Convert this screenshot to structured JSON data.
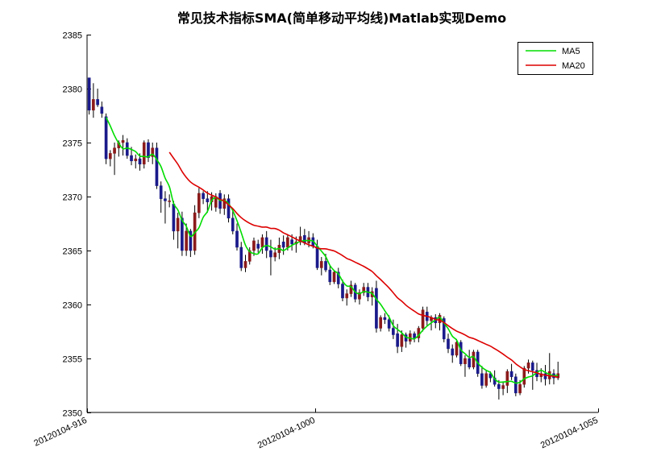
{
  "chart_data": {
    "type": "candlestick",
    "title": "常见技术指标SMA(简单移动平均线)Matlab实现Demo",
    "ylim": [
      2350,
      2385
    ],
    "yticks": [
      2350,
      2355,
      2360,
      2365,
      2370,
      2375,
      2380,
      2385
    ],
    "xlim": [
      0,
      121
    ],
    "xticks": [
      {
        "index": 0,
        "label": "20120104-916"
      },
      {
        "index": 54,
        "label": "20120104-1000"
      },
      {
        "index": 121,
        "label": "20120104-1055"
      }
    ],
    "grid": false,
    "legend_position": "top-right",
    "up_color": "#8B1A1A",
    "down_color": "#1A1A8B",
    "candles": {
      "fields": [
        "open",
        "high",
        "low",
        "close"
      ],
      "rows": [
        [
          2381.0,
          2381.0,
          2377.6,
          2378.0
        ],
        [
          2378.0,
          2380.5,
          2377.3,
          2379.0
        ],
        [
          2379.0,
          2380.0,
          2378.3,
          2378.5
        ],
        [
          2378.3,
          2378.8,
          2377.3,
          2377.7
        ],
        [
          2377.4,
          2377.7,
          2373.0,
          2373.5
        ],
        [
          2373.5,
          2374.3,
          2372.8,
          2374.0
        ],
        [
          2374.0,
          2375.0,
          2372.0,
          2374.5
        ],
        [
          2374.5,
          2375.2,
          2373.7,
          2375.0
        ],
        [
          2375.0,
          2375.7,
          2373.8,
          2375.2
        ],
        [
          2375.0,
          2375.4,
          2373.5,
          2373.8
        ],
        [
          2373.8,
          2374.6,
          2372.9,
          2373.3
        ],
        [
          2373.3,
          2373.9,
          2372.6,
          2373.5
        ],
        [
          2373.5,
          2374.0,
          2372.4,
          2373.0
        ],
        [
          2373.0,
          2375.2,
          2372.6,
          2375.0
        ],
        [
          2375.0,
          2375.3,
          2373.2,
          2373.6
        ],
        [
          2373.7,
          2375.0,
          2373.0,
          2374.5
        ],
        [
          2374.5,
          2375.0,
          2370.7,
          2371.0
        ],
        [
          2371.0,
          2371.4,
          2368.5,
          2369.8
        ],
        [
          2369.8,
          2370.5,
          2367.5,
          2369.6
        ],
        [
          2369.6,
          2370.2,
          2369.0,
          2369.6
        ],
        [
          2369.3,
          2369.6,
          2366.0,
          2366.8
        ],
        [
          2366.8,
          2368.5,
          2365.2,
          2368.0
        ],
        [
          2368.0,
          2368.6,
          2364.5,
          2365.0
        ],
        [
          2365.0,
          2367.5,
          2364.5,
          2366.8
        ],
        [
          2366.8,
          2367.0,
          2364.4,
          2365.0
        ],
        [
          2365.0,
          2369.2,
          2364.6,
          2368.5
        ],
        [
          2368.5,
          2370.8,
          2368.0,
          2370.3
        ],
        [
          2370.3,
          2370.5,
          2369.3,
          2369.8
        ],
        [
          2369.8,
          2370.5,
          2368.5,
          2369.5
        ],
        [
          2369.5,
          2370.4,
          2368.7,
          2370.0
        ],
        [
          2369.0,
          2370.3,
          2368.6,
          2370.0
        ],
        [
          2370.3,
          2370.6,
          2368.4,
          2368.9
        ],
        [
          2368.9,
          2370.2,
          2368.3,
          2369.8
        ],
        [
          2369.8,
          2370.2,
          2367.6,
          2368.0
        ],
        [
          2368.0,
          2368.8,
          2366.5,
          2366.8
        ],
        [
          2366.8,
          2367.5,
          2365.0,
          2365.3
        ],
        [
          2365.3,
          2365.8,
          2363.1,
          2363.4
        ],
        [
          2363.4,
          2364.6,
          2363.0,
          2364.0
        ],
        [
          2364.0,
          2365.3,
          2363.7,
          2365.0
        ],
        [
          2365.0,
          2366.2,
          2364.5,
          2365.9
        ],
        [
          2365.6,
          2366.0,
          2364.8,
          2365.2
        ],
        [
          2365.3,
          2366.5,
          2364.7,
          2366.2
        ],
        [
          2366.2,
          2366.8,
          2364.3,
          2365.0
        ],
        [
          2365.0,
          2366.0,
          2362.7,
          2364.4
        ],
        [
          2364.4,
          2365.3,
          2364.0,
          2364.8
        ],
        [
          2364.8,
          2366.2,
          2364.2,
          2365.5
        ],
        [
          2365.8,
          2366.4,
          2364.6,
          2365.3
        ],
        [
          2365.3,
          2366.5,
          2365.0,
          2366.2
        ],
        [
          2366.0,
          2366.5,
          2365.0,
          2365.6
        ],
        [
          2365.6,
          2366.3,
          2364.8,
          2365.8
        ],
        [
          2365.8,
          2367.2,
          2365.5,
          2366.3
        ],
        [
          2366.4,
          2367.0,
          2365.5,
          2365.7
        ],
        [
          2365.7,
          2366.8,
          2365.3,
          2366.2
        ],
        [
          2366.2,
          2366.6,
          2365.2,
          2365.4
        ],
        [
          2365.4,
          2366.0,
          2363.2,
          2363.4
        ],
        [
          2363.4,
          2364.4,
          2362.7,
          2364.0
        ],
        [
          2364.0,
          2364.7,
          2363.0,
          2363.2
        ],
        [
          2363.2,
          2363.6,
          2361.8,
          2362.1
        ],
        [
          2362.1,
          2363.2,
          2361.9,
          2363.0
        ],
        [
          2363.0,
          2363.4,
          2361.5,
          2361.9
        ],
        [
          2361.9,
          2362.3,
          2360.3,
          2360.6
        ],
        [
          2360.6,
          2361.4,
          2359.9,
          2361.0
        ],
        [
          2361.0,
          2362.2,
          2360.7,
          2361.8
        ],
        [
          2361.8,
          2362.0,
          2360.2,
          2360.5
        ],
        [
          2360.5,
          2361.4,
          2360.0,
          2361.1
        ],
        [
          2361.1,
          2362.0,
          2360.8,
          2361.6
        ],
        [
          2361.6,
          2362.0,
          2360.3,
          2360.7
        ],
        [
          2360.7,
          2361.6,
          2359.9,
          2361.2
        ],
        [
          2361.5,
          2362.2,
          2357.4,
          2357.8
        ],
        [
          2357.8,
          2359.0,
          2357.5,
          2358.8
        ],
        [
          2358.8,
          2359.2,
          2358.2,
          2358.6
        ],
        [
          2358.6,
          2359.0,
          2357.5,
          2357.8
        ],
        [
          2357.8,
          2358.6,
          2356.8,
          2357.2
        ],
        [
          2357.3,
          2358.2,
          2355.5,
          2356.1
        ],
        [
          2356.1,
          2357.6,
          2355.6,
          2357.2
        ],
        [
          2357.2,
          2357.4,
          2356.0,
          2356.6
        ],
        [
          2356.6,
          2357.6,
          2356.3,
          2357.3
        ],
        [
          2357.3,
          2357.5,
          2356.5,
          2356.9
        ],
        [
          2356.9,
          2358.0,
          2356.5,
          2357.8
        ],
        [
          2357.8,
          2359.8,
          2357.5,
          2359.5
        ],
        [
          2359.3,
          2359.8,
          2358.0,
          2358.5
        ],
        [
          2358.5,
          2359.0,
          2357.6,
          2358.8
        ],
        [
          2358.8,
          2359.1,
          2357.8,
          2358.3
        ],
        [
          2358.3,
          2359.2,
          2357.6,
          2359.0
        ],
        [
          2358.7,
          2358.9,
          2356.5,
          2356.8
        ],
        [
          2356.8,
          2357.3,
          2355.5,
          2355.9
        ],
        [
          2355.9,
          2356.3,
          2354.6,
          2355.3
        ],
        [
          2355.3,
          2356.8,
          2355.1,
          2356.5
        ],
        [
          2356.5,
          2356.7,
          2354.3,
          2354.5
        ],
        [
          2354.5,
          2355.3,
          2353.3,
          2355.0
        ],
        [
          2355.0,
          2355.8,
          2354.0,
          2354.2
        ],
        [
          2354.2,
          2355.8,
          2354.0,
          2355.6
        ],
        [
          2355.6,
          2355.8,
          2353.3,
          2353.6
        ],
        [
          2353.6,
          2354.3,
          2352.2,
          2352.5
        ],
        [
          2352.5,
          2353.9,
          2352.3,
          2353.6
        ],
        [
          2353.6,
          2353.8,
          2352.8,
          2353.2
        ],
        [
          2353.2,
          2353.9,
          2352.4,
          2352.6
        ],
        [
          2352.6,
          2353.0,
          2351.2,
          2352.2
        ],
        [
          2352.2,
          2352.8,
          2351.6,
          2352.5
        ],
        [
          2352.5,
          2354.0,
          2351.8,
          2353.8
        ],
        [
          2353.8,
          2354.5,
          2353.0,
          2353.3
        ],
        [
          2353.3,
          2353.6,
          2351.5,
          2351.8
        ],
        [
          2351.8,
          2353.0,
          2351.6,
          2352.6
        ],
        [
          2352.6,
          2354.3,
          2352.3,
          2354.1
        ],
        [
          2354.1,
          2354.9,
          2353.6,
          2354.6
        ],
        [
          2354.6,
          2354.8,
          2352.1,
          2353.9
        ],
        [
          2353.9,
          2354.6,
          2352.9,
          2353.3
        ],
        [
          2353.3,
          2354.1,
          2352.8,
          2353.6
        ],
        [
          2353.6,
          2354.4,
          2352.5,
          2353.1
        ],
        [
          2353.1,
          2355.5,
          2352.6,
          2353.8
        ],
        [
          2353.6,
          2354.0,
          2352.6,
          2353.2
        ],
        [
          2353.2,
          2354.7,
          2353.0,
          2353.6
        ]
      ]
    },
    "series": [
      {
        "name": "MA5",
        "color": "#00DD00"
      },
      {
        "name": "MA20",
        "color": "#DD0000"
      }
    ]
  }
}
